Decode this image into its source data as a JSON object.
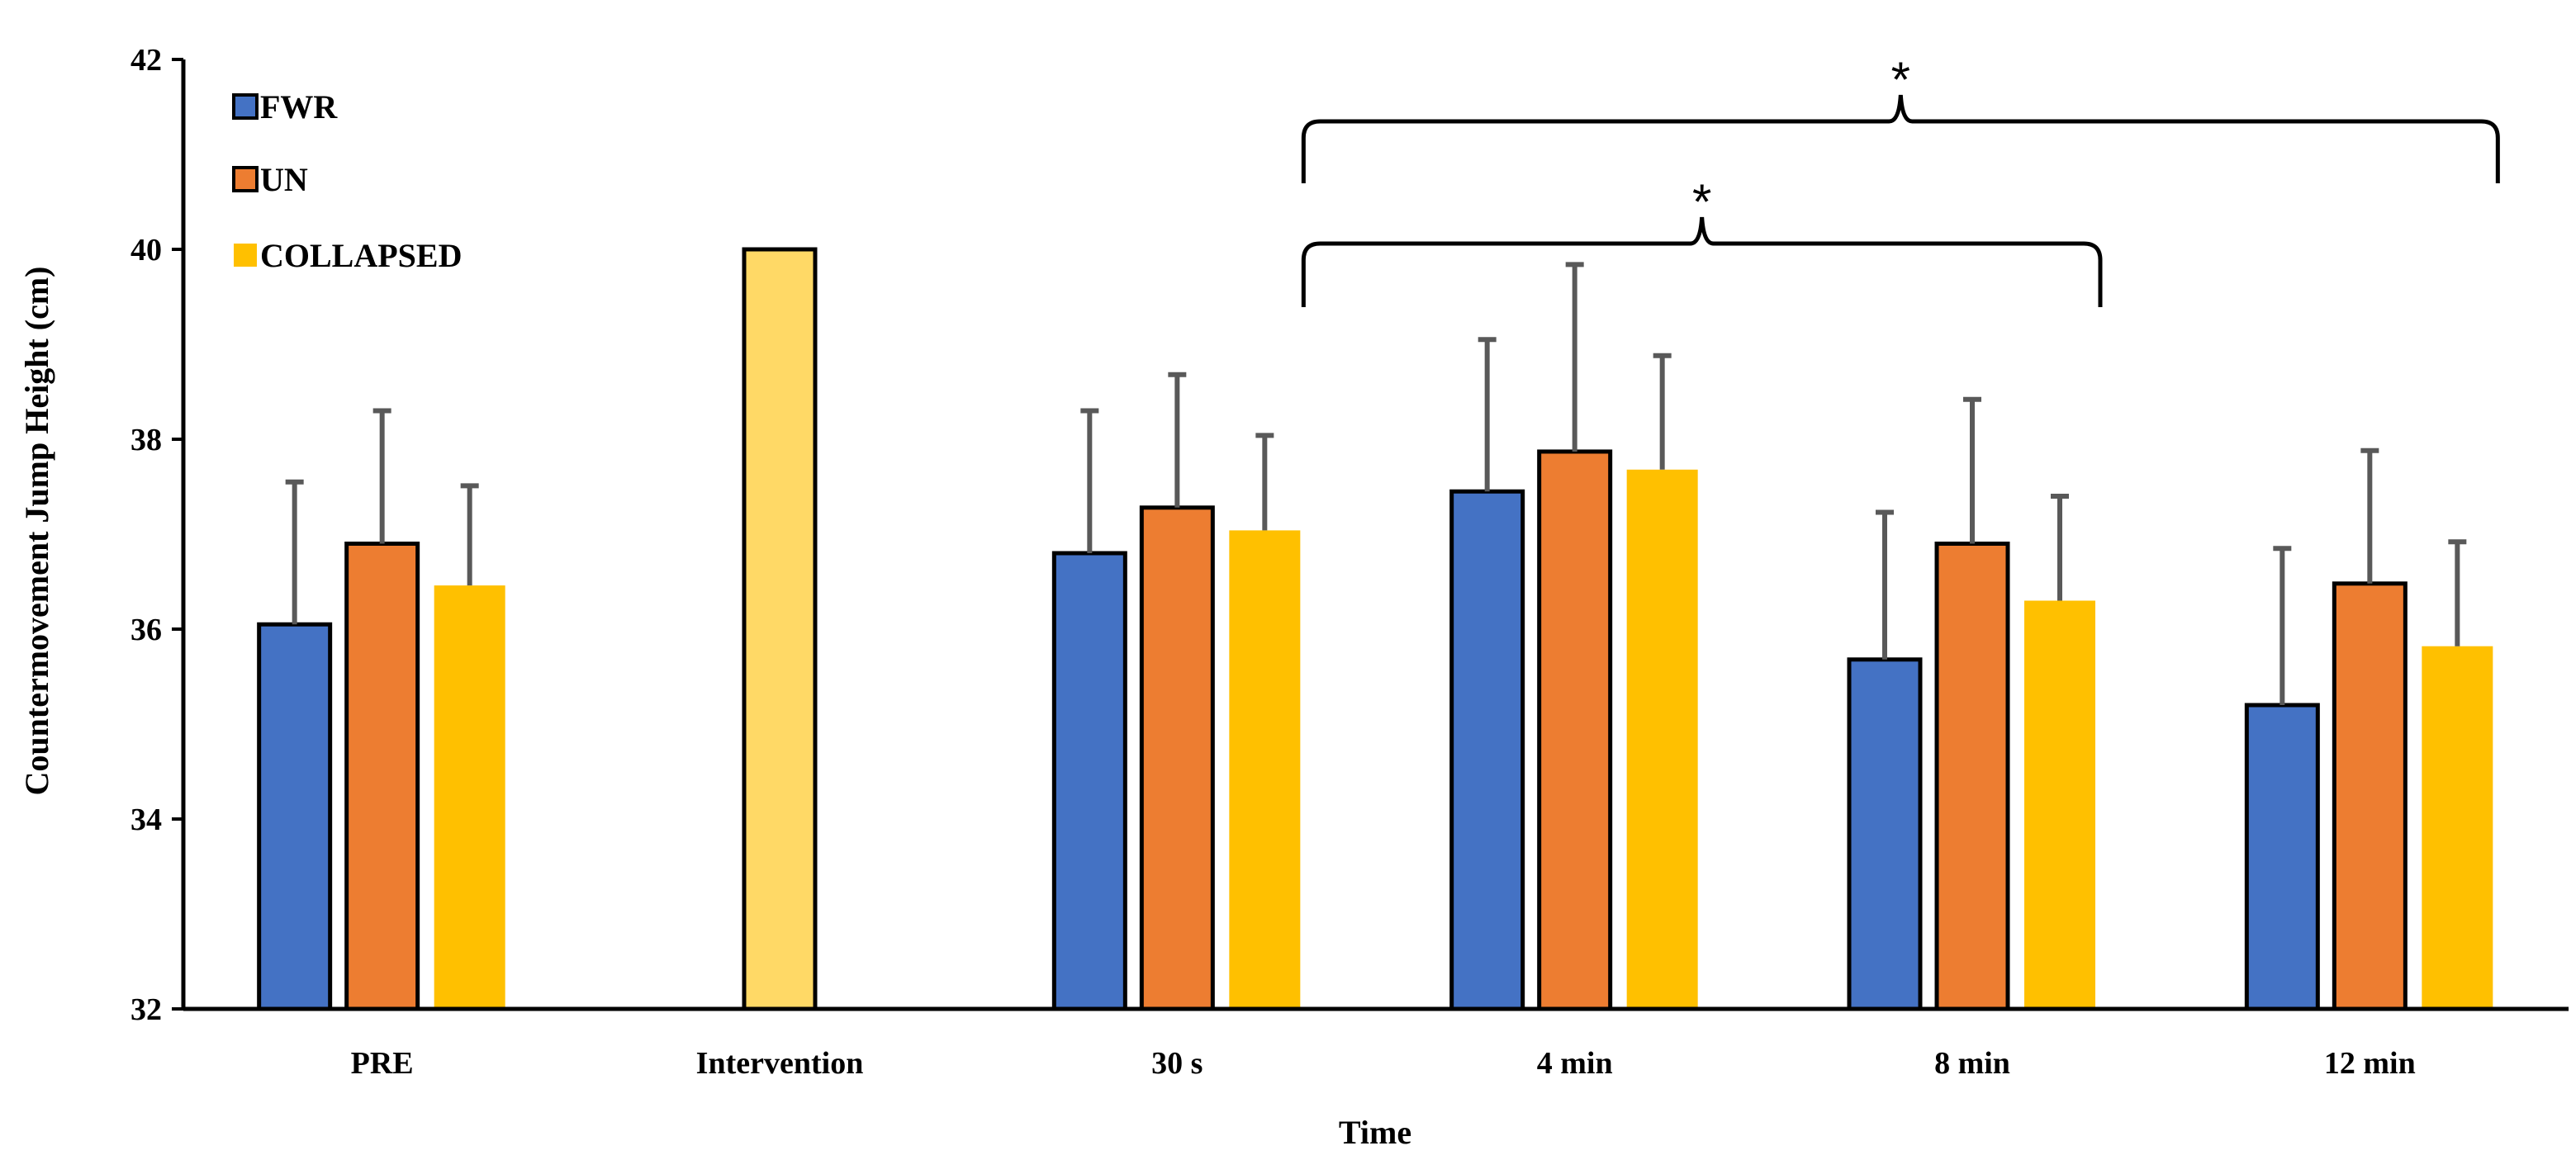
{
  "chart_data": {
    "type": "bar",
    "title": "",
    "xlabel": "Time",
    "ylabel": "Countermovement Jump Height (cm)",
    "ylim": [
      32,
      42
    ],
    "yticks": [
      32,
      34,
      36,
      38,
      40,
      42
    ],
    "grid": false,
    "legend_position": "top-left",
    "categories": [
      "PRE",
      "Intervention",
      "30 s",
      "4 min",
      "8 min",
      "12 min"
    ],
    "series": [
      {
        "name": "FWR",
        "color": "#4472C4",
        "values": [
          36.05,
          null,
          36.8,
          37.45,
          35.68,
          35.2
        ],
        "errors": [
          1.5,
          null,
          1.5,
          1.6,
          1.55,
          1.65
        ]
      },
      {
        "name": "UN",
        "color": "#ED7D31",
        "values": [
          36.9,
          null,
          37.28,
          37.87,
          36.9,
          36.48
        ],
        "errors": [
          1.4,
          null,
          1.4,
          1.97,
          1.52,
          1.4
        ]
      },
      {
        "name": "COLLAPSED",
        "color": "#FFC000",
        "values": [
          36.46,
          null,
          37.04,
          37.68,
          36.3,
          35.82
        ],
        "errors": [
          1.05,
          null,
          1.0,
          1.2,
          1.1,
          1.1
        ]
      }
    ],
    "intervention_bar": {
      "category": "Intervention",
      "value": 40.0,
      "color": "#FFD966"
    },
    "annotations": [
      {
        "text": "*",
        "span": [
          "30 s",
          "12 min"
        ],
        "type": "brace"
      },
      {
        "text": "*",
        "span": [
          "30 s",
          "8 min"
        ],
        "type": "brace"
      }
    ]
  }
}
